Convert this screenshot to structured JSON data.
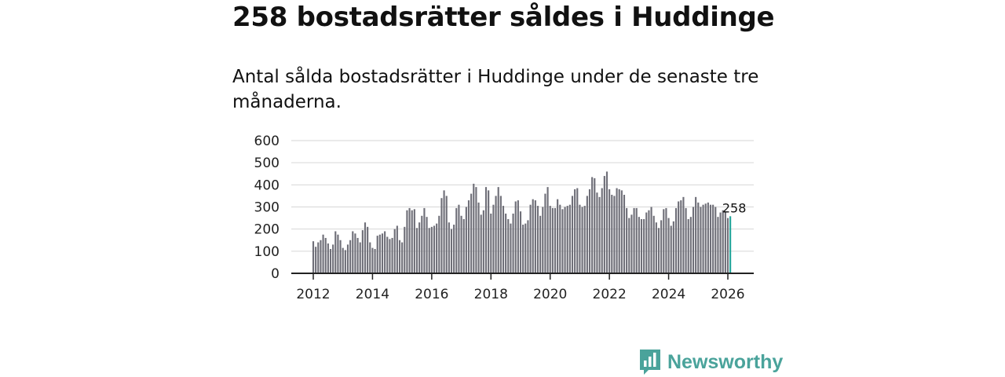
{
  "headline": "258 bostadsrätter såldes i Huddinge",
  "subtitle": "Antal sålda bostadsrätter i Huddinge under de senaste tre månaderna.",
  "brand": {
    "name": "Newsworthy",
    "color": "#4aa39b"
  },
  "chart_data": {
    "type": "bar",
    "title": "Antal sålda bostadsrätter i Huddinge",
    "xlabel": "",
    "ylabel": "",
    "ylim": [
      0,
      600
    ],
    "yticks": [
      0,
      100,
      200,
      300,
      400,
      500,
      600
    ],
    "x_tick_labels": [
      "2012",
      "2014",
      "2016",
      "2018",
      "2020",
      "2022",
      "2024",
      "2026"
    ],
    "start": "2012-01",
    "bar_color": "#6f6f78",
    "highlight_color": "#22a59a",
    "highlight_label": "258",
    "values": [
      145,
      120,
      140,
      150,
      175,
      160,
      135,
      110,
      130,
      190,
      175,
      150,
      115,
      105,
      130,
      150,
      190,
      180,
      160,
      140,
      195,
      230,
      210,
      140,
      115,
      110,
      170,
      175,
      180,
      190,
      165,
      155,
      160,
      200,
      215,
      150,
      140,
      210,
      285,
      295,
      285,
      290,
      205,
      230,
      260,
      295,
      255,
      205,
      210,
      215,
      225,
      260,
      340,
      375,
      350,
      230,
      200,
      220,
      295,
      310,
      260,
      245,
      300,
      330,
      360,
      405,
      390,
      320,
      265,
      285,
      390,
      375,
      270,
      310,
      350,
      390,
      350,
      305,
      270,
      245,
      225,
      270,
      325,
      330,
      280,
      220,
      225,
      240,
      310,
      335,
      330,
      305,
      260,
      300,
      360,
      390,
      305,
      295,
      295,
      335,
      310,
      290,
      300,
      305,
      310,
      350,
      380,
      385,
      310,
      300,
      305,
      350,
      380,
      435,
      430,
      365,
      345,
      385,
      440,
      460,
      380,
      355,
      350,
      385,
      380,
      375,
      355,
      295,
      250,
      265,
      295,
      295,
      255,
      245,
      245,
      275,
      285,
      300,
      260,
      230,
      205,
      240,
      290,
      295,
      250,
      215,
      235,
      295,
      325,
      330,
      345,
      295,
      245,
      255,
      300,
      345,
      320,
      300,
      310,
      315,
      320,
      310,
      310,
      300,
      255,
      275,
      285,
      280,
      250,
      258
    ]
  }
}
